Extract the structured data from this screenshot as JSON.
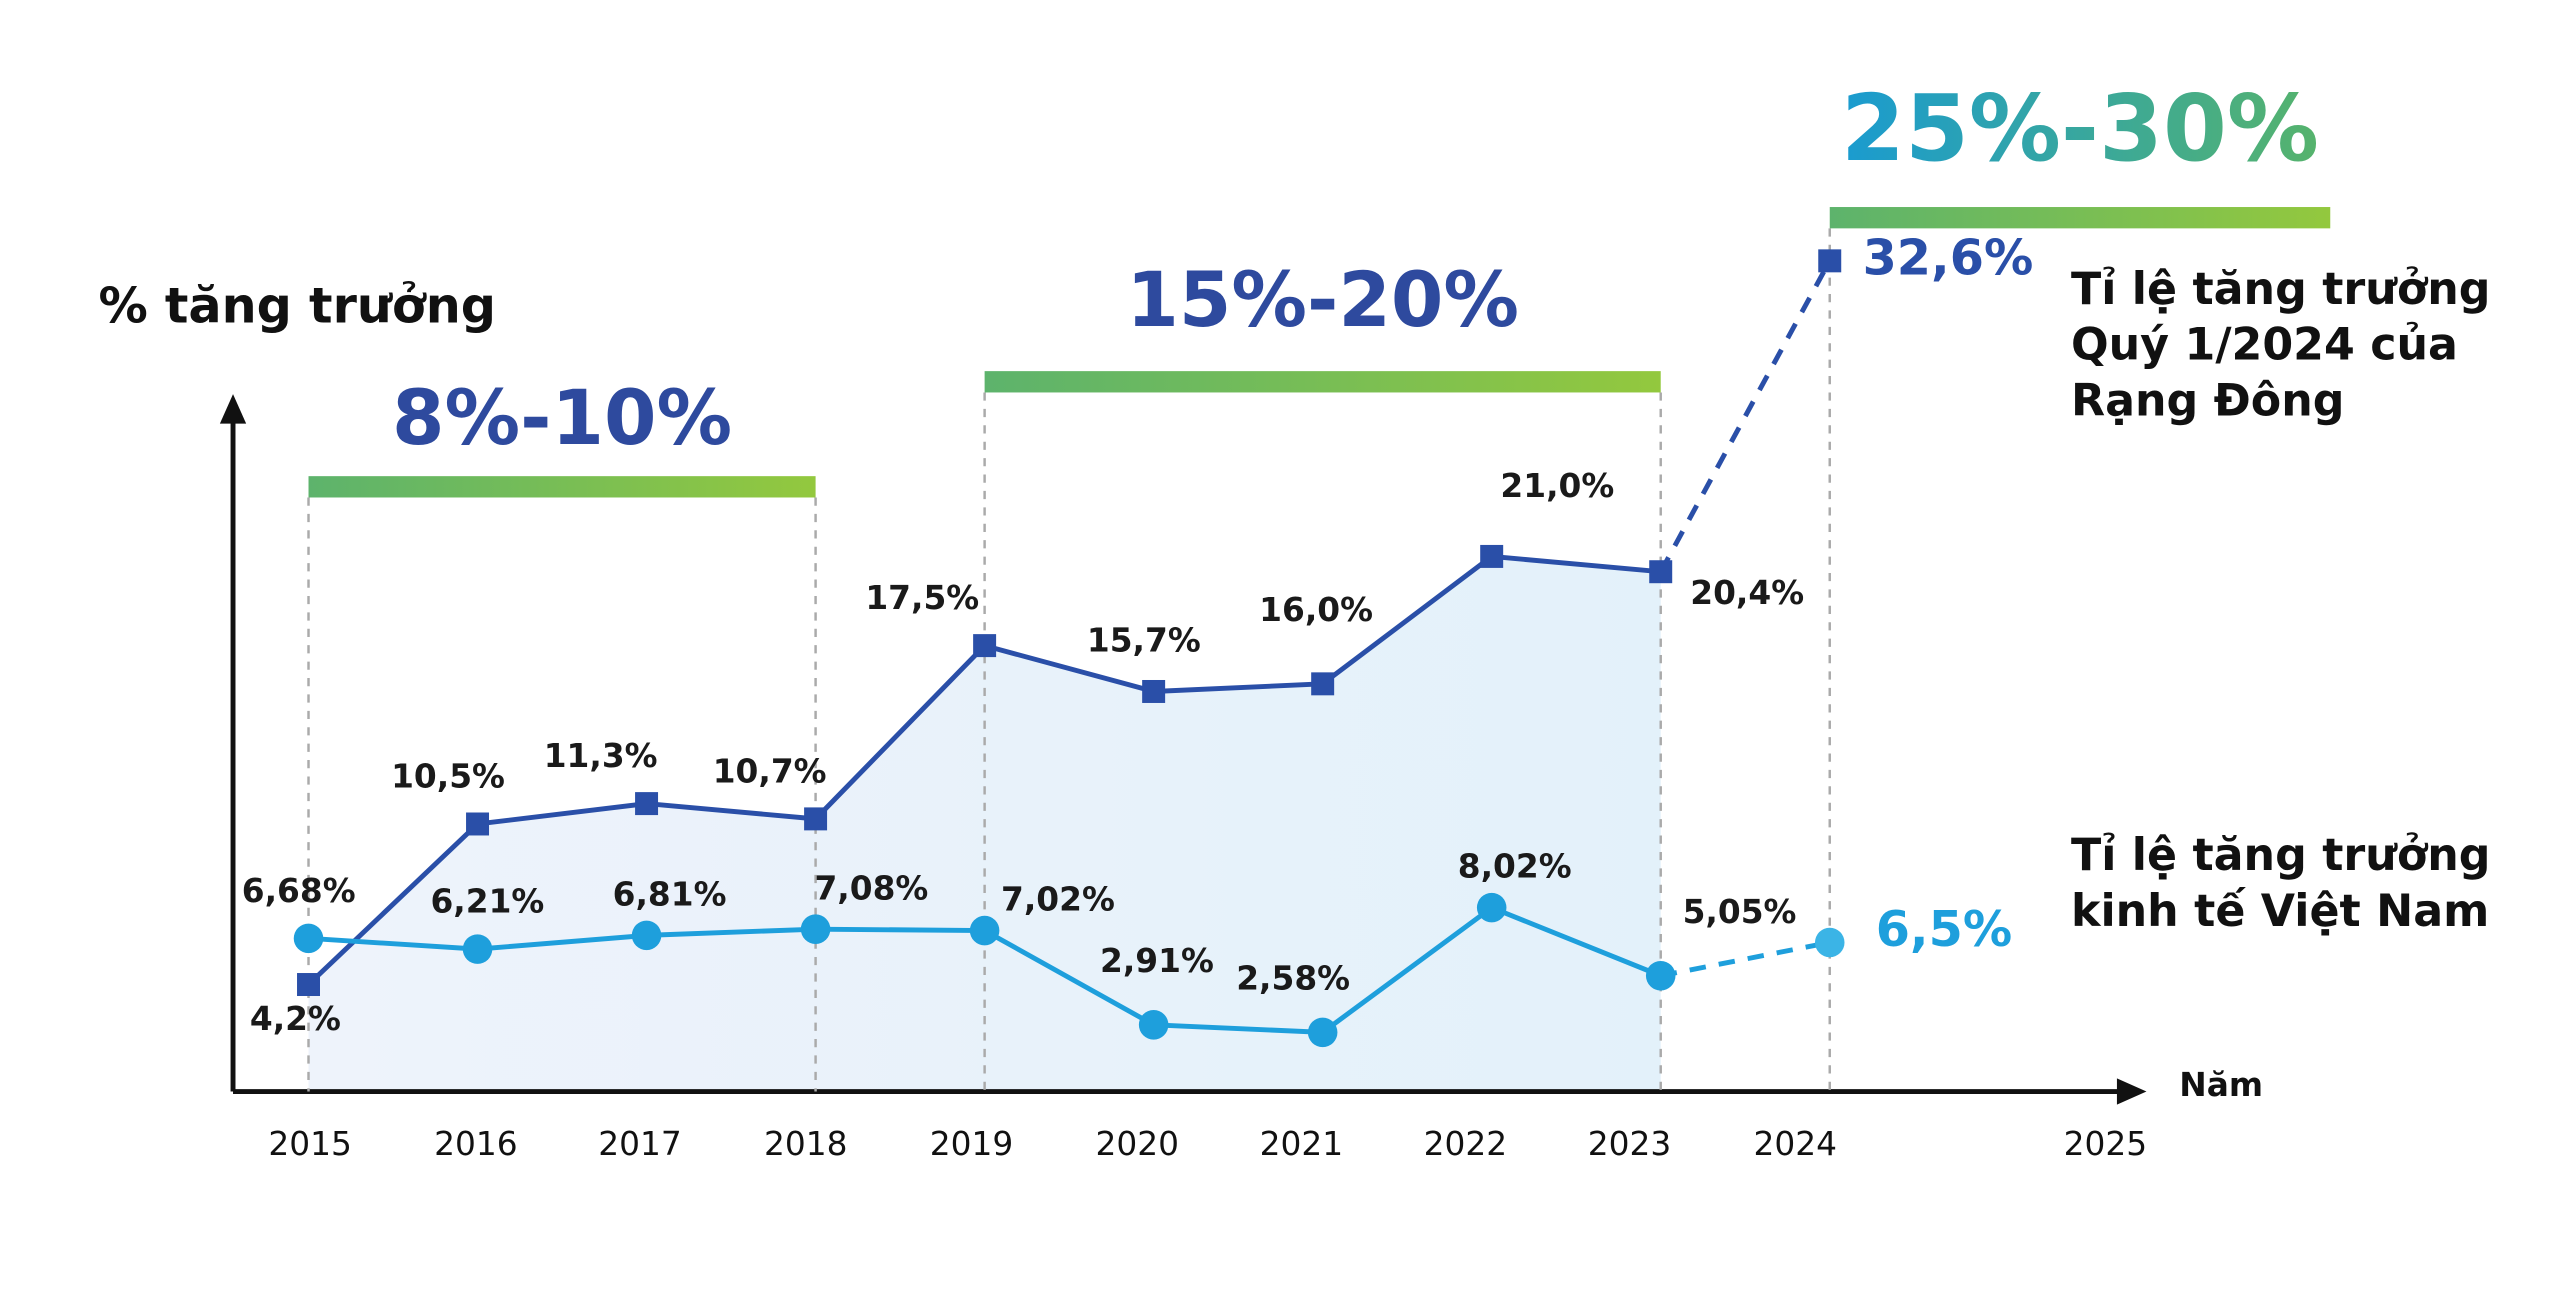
{
  "chart_data": {
    "type": "line",
    "y_label": "% tăng trưởng",
    "x_label": "Năm",
    "categories": [
      "2015",
      "2016",
      "2017",
      "2018",
      "2019",
      "2020",
      "2021",
      "2022",
      "2023",
      "2024",
      "2025"
    ],
    "ylim": [
      0,
      36
    ],
    "y2lim": [
      0,
      40
    ],
    "series": [
      {
        "name": "Tỉ lệ tăng trưởng Quý 1/2024 của Rạng Đông",
        "color": "#2a4fa8",
        "marker": "square",
        "values": [
          4.2,
          10.5,
          11.3,
          10.7,
          17.5,
          15.7,
          16.0,
          21.0,
          20.4,
          32.6,
          null
        ],
        "value_labels": [
          "4,2%",
          "10,5%",
          "11,3%",
          "10,7%",
          "17,5%",
          "15,7%",
          "16,0%",
          "21,0%",
          "20,4%",
          "32,6%",
          null
        ]
      },
      {
        "name": "Tỉ lệ tăng trưởng kinh tế Việt Nam",
        "color": "#1e9fdc",
        "marker": "circle",
        "axis": "y2",
        "values": [
          6.68,
          6.21,
          6.81,
          7.08,
          7.02,
          2.91,
          2.58,
          8.02,
          5.05,
          6.5,
          null
        ],
        "value_labels": [
          "6,68%",
          "6,21%",
          "6,81%",
          "7,08%",
          "7,02%",
          "2,91%",
          "2,58%",
          "8,02%",
          "5,05%",
          "6,5%",
          null
        ]
      }
    ],
    "bands": [
      {
        "label": "8%-10%",
        "from": "2015",
        "to": "2018"
      },
      {
        "label": "15%-20%",
        "from": "2019",
        "to": "2023"
      },
      {
        "label": "25%-30%",
        "from": "2024",
        "to": "2025"
      }
    ]
  }
}
